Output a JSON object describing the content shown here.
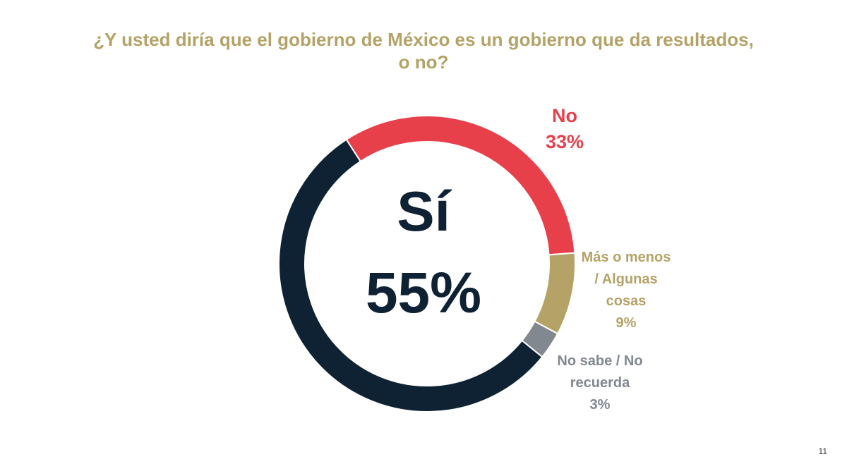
{
  "slide": {
    "title_lines": [
      "¿Y usted diría que el gobierno de México es un gobierno que da resultados,",
      "o no?"
    ],
    "page_number": "11",
    "center": {
      "label": "Sí",
      "value_text": "55%"
    }
  },
  "labels": {
    "no": [
      "No",
      "33%"
    ],
    "mas_o_menos": [
      "Más o menos",
      "/ Algunas",
      "cosas",
      "9%"
    ],
    "no_sabe": [
      "No sabe / No",
      "recuerda",
      "3%"
    ]
  },
  "colors": {
    "title": "#B5A267",
    "si": "#0F2233",
    "no": "#E8404B",
    "mas_o_menos": "#B5A267",
    "no_sabe": "#828890"
  },
  "chart_data": {
    "type": "pie",
    "variant": "donut",
    "categories": [
      "Sí",
      "No",
      "Más o menos / Algunas cosas",
      "No sabe / No recuerda"
    ],
    "values": [
      55,
      33,
      9,
      3
    ],
    "unit": "%",
    "colors": [
      "#0F2233",
      "#E8404B",
      "#B5A267",
      "#828890"
    ],
    "legend": "none",
    "segment_order_clockwise_from_top": [
      "No",
      "Más o menos / Algunas cosas",
      "No sabe / No recuerda",
      "Sí"
    ]
  }
}
